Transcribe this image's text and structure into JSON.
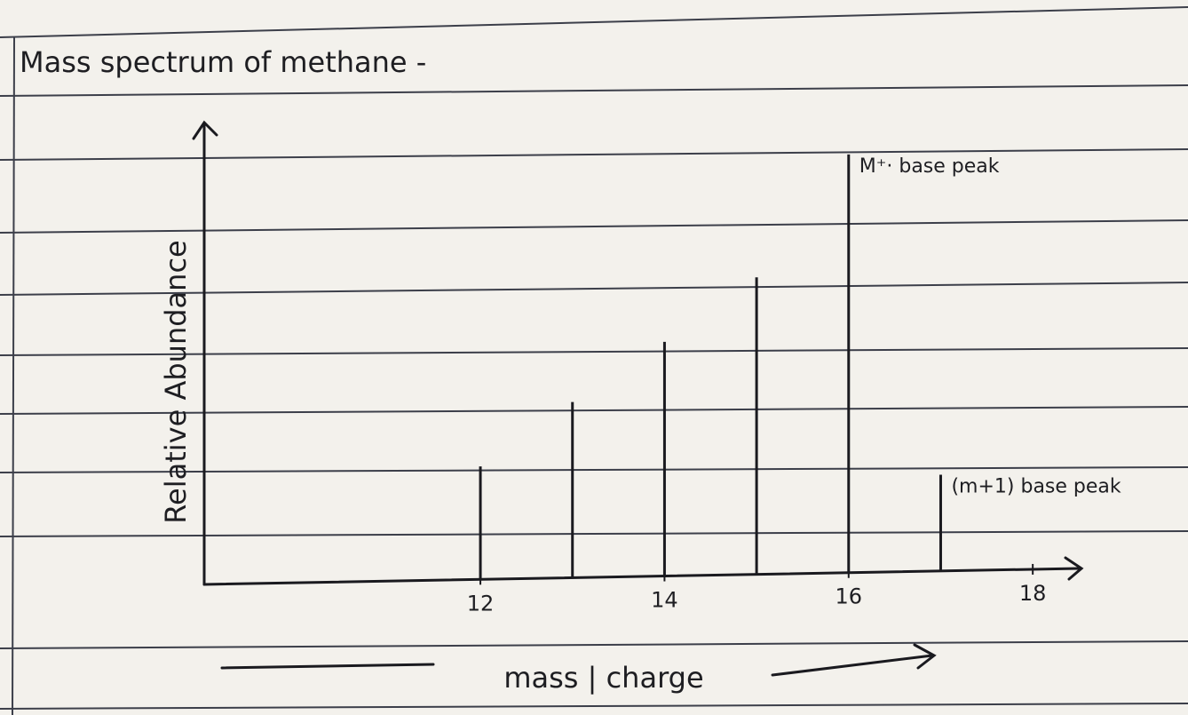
{
  "chart_data": {
    "type": "bar",
    "title": "Mass spectrum of methane -",
    "y_label": "Relative Abundance",
    "x_label": "mass | charge",
    "x": [
      12,
      13,
      14,
      15,
      16,
      17
    ],
    "values": [
      27,
      42,
      56,
      71,
      100,
      23
    ],
    "color": "#1a1a1f",
    "title_color": "#9b1b30",
    "xlim": [
      9,
      18.5
    ],
    "xticks": [
      12,
      14,
      16,
      18
    ],
    "ylim": [
      0,
      110
    ],
    "annotations": [
      "M⁺· base peak",
      "(m+1) base peak"
    ]
  }
}
